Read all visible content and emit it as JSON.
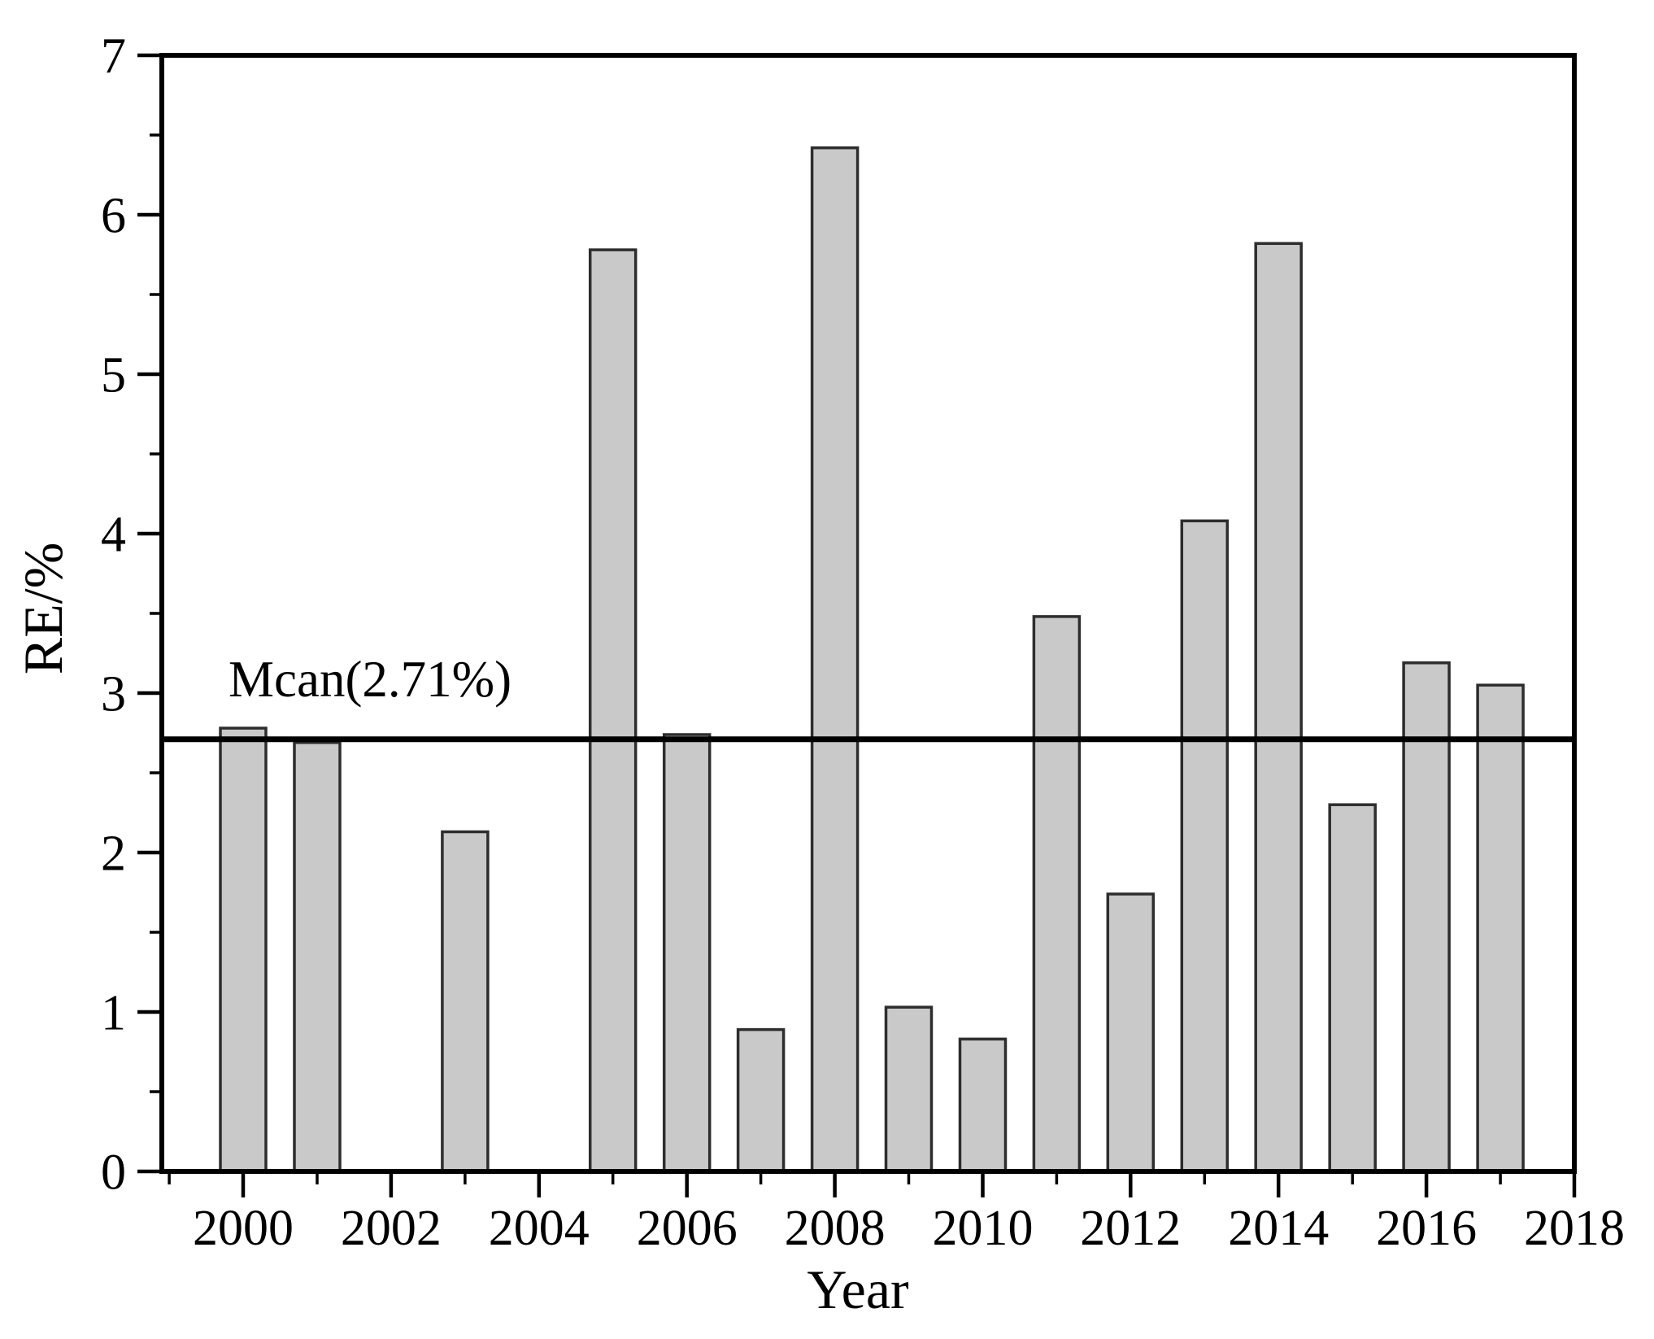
{
  "figure": {
    "background": "#ffffff"
  },
  "chart_data": {
    "type": "bar",
    "title": "",
    "xlabel": "Year",
    "ylabel": "RE/%",
    "categories": [
      2000,
      2001,
      2002,
      2003,
      2004,
      2005,
      2006,
      2007,
      2008,
      2009,
      2010,
      2011,
      2012,
      2013,
      2014,
      2015,
      2016,
      2017
    ],
    "values": [
      2.78,
      2.69,
      0,
      2.13,
      0,
      5.78,
      2.74,
      0.89,
      6.42,
      1.03,
      0.83,
      3.48,
      1.74,
      4.08,
      5.82,
      2.3,
      3.19,
      3.05
    ],
    "ylim": [
      0,
      7
    ],
    "xlim": [
      1998.9,
      2018
    ],
    "y_major_ticks": [
      0,
      1,
      2,
      3,
      4,
      5,
      6,
      7
    ],
    "y_major_tick_labels": [
      "0",
      "1",
      "2",
      "3",
      "4",
      "5",
      "6",
      "7"
    ],
    "y_minor_ticks": [
      0.5,
      1.5,
      2.5,
      3.5,
      4.5,
      5.5,
      6.5
    ],
    "x_major_ticks": [
      2000,
      2002,
      2004,
      2006,
      2008,
      2010,
      2012,
      2014,
      2016,
      2018
    ],
    "x_major_tick_labels": [
      "2000",
      "2002",
      "2004",
      "2006",
      "2008",
      "2010",
      "2012",
      "2014",
      "2016",
      "2018"
    ],
    "x_minor_ticks": [
      1999,
      2001,
      2003,
      2005,
      2007,
      2009,
      2011,
      2013,
      2015,
      2017
    ],
    "mean_line": {
      "value": 2.71,
      "label": "Mcan(2.71%)"
    },
    "grid": false,
    "legend": null,
    "colors": {
      "bar_fill": "#c9c9c9",
      "bar_stroke": "#2d2d2d",
      "axis": "#000000",
      "mean_line": "#000000"
    }
  }
}
